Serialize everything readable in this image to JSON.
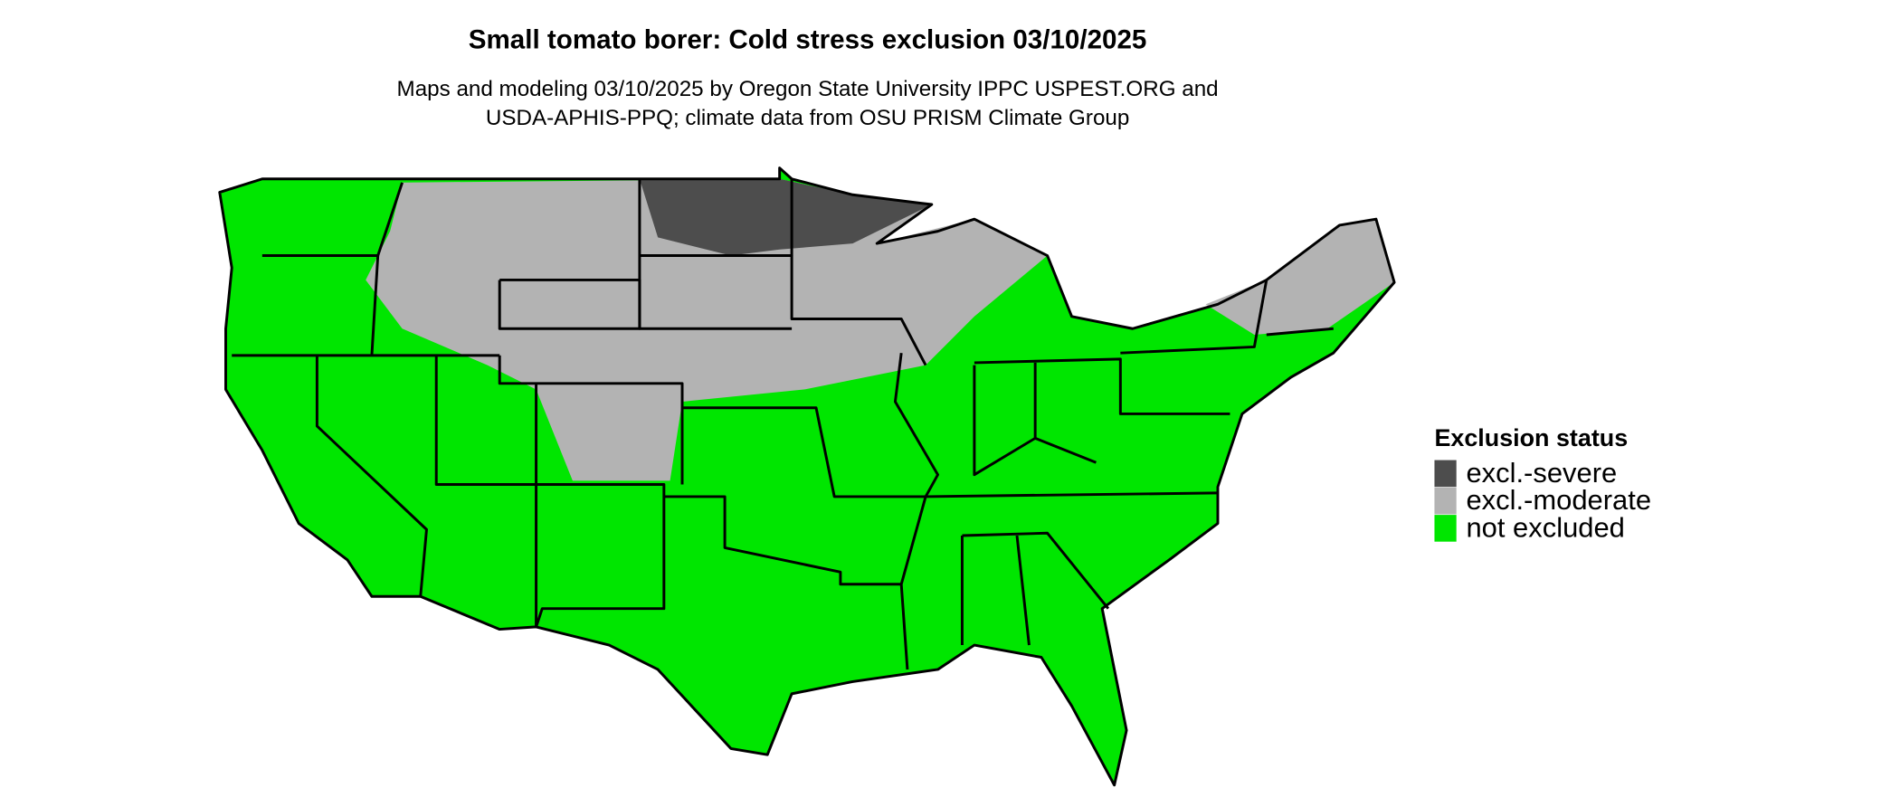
{
  "title": "Small tomato borer: Cold stress exclusion 03/10/2025",
  "subtitle": [
    "Maps and modeling 03/10/2025 by Oregon State University IPPC USPEST.ORG and",
    "USDA-APHIS-PPQ; climate data from OSU PRISM Climate Group"
  ],
  "legend": {
    "title": "Exclusion status",
    "items": [
      {
        "label": "excl.-severe",
        "color": "#4d4d4d"
      },
      {
        "label": "excl.-moderate",
        "color": "#b3b3b3"
      },
      {
        "label": "not excluded",
        "color": "#00e600"
      }
    ]
  }
}
